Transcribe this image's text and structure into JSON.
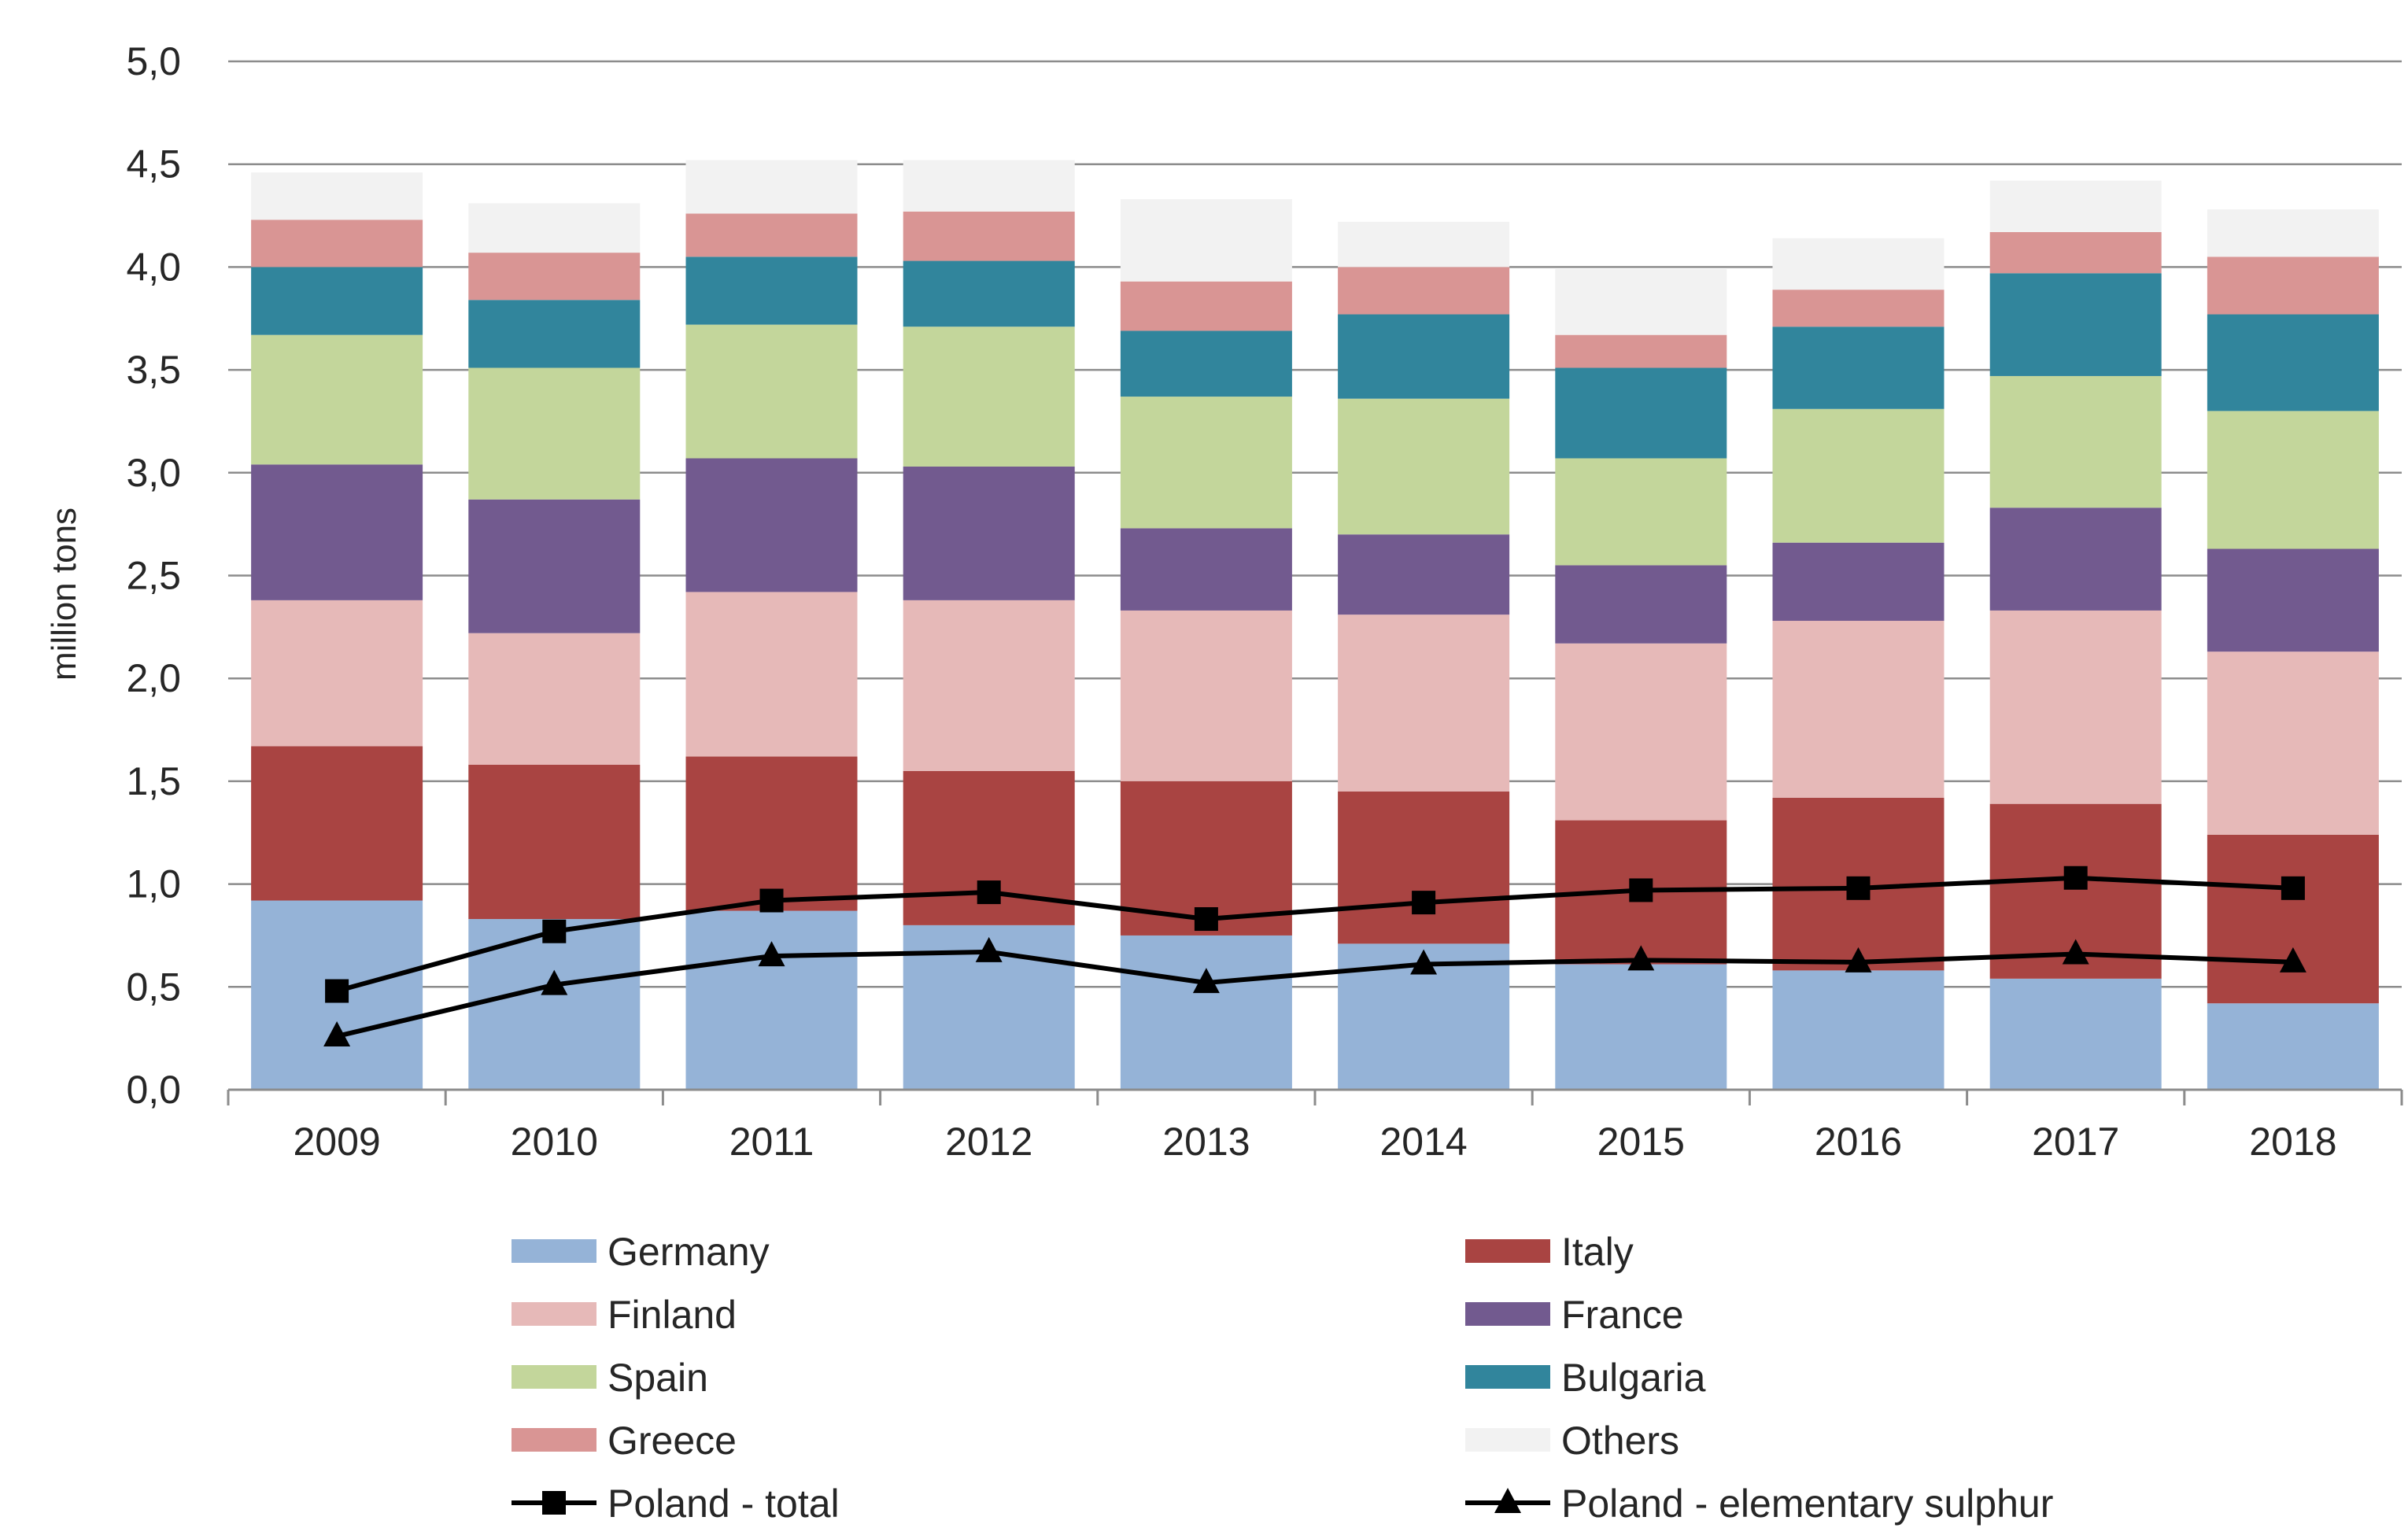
{
  "chart_data": {
    "type": "bar",
    "stacked": true,
    "title": "",
    "xlabel": "",
    "ylabel": "million tons",
    "ylim": [
      0,
      5
    ],
    "ytick_step": 0.5,
    "ytick_labels": [
      "0,0",
      "0,5",
      "1,0",
      "1,5",
      "2,0",
      "2,5",
      "3,0",
      "3,5",
      "4,0",
      "4,5",
      "5,0"
    ],
    "grid": true,
    "legend_position": "bottom",
    "categories": [
      "2009",
      "2010",
      "2011",
      "2012",
      "2013",
      "2014",
      "2015",
      "2016",
      "2017",
      "2018"
    ],
    "series": [
      {
        "name": "Germany",
        "kind": "bar",
        "color": "#95B3D7",
        "values": [
          0.92,
          0.83,
          0.87,
          0.8,
          0.75,
          0.71,
          0.61,
          0.58,
          0.54,
          0.42
        ]
      },
      {
        "name": "Italy",
        "kind": "bar",
        "color": "#A94442",
        "values": [
          0.75,
          0.75,
          0.75,
          0.75,
          0.75,
          0.74,
          0.7,
          0.84,
          0.85,
          0.82
        ]
      },
      {
        "name": "Finland",
        "kind": "bar",
        "color": "#E6B9B8",
        "values": [
          0.71,
          0.64,
          0.8,
          0.83,
          0.83,
          0.86,
          0.86,
          0.86,
          0.94,
          0.89
        ]
      },
      {
        "name": "France",
        "kind": "bar",
        "color": "#725A8F",
        "values": [
          0.66,
          0.65,
          0.65,
          0.65,
          0.4,
          0.39,
          0.38,
          0.38,
          0.5,
          0.5
        ]
      },
      {
        "name": "Spain",
        "kind": "bar",
        "color": "#C3D69B",
        "values": [
          0.63,
          0.64,
          0.65,
          0.68,
          0.64,
          0.66,
          0.52,
          0.65,
          0.64,
          0.67
        ]
      },
      {
        "name": "Bulgaria",
        "kind": "bar",
        "color": "#31859C",
        "values": [
          0.33,
          0.33,
          0.33,
          0.32,
          0.32,
          0.41,
          0.44,
          0.4,
          0.5,
          0.47
        ]
      },
      {
        "name": "Greece",
        "kind": "bar",
        "color": "#D99594",
        "values": [
          0.23,
          0.23,
          0.21,
          0.24,
          0.24,
          0.23,
          0.16,
          0.18,
          0.2,
          0.28
        ]
      },
      {
        "name": "Others",
        "kind": "bar",
        "color": "#F2F2F2",
        "values": [
          0.23,
          0.24,
          0.26,
          0.25,
          0.4,
          0.22,
          0.32,
          0.25,
          0.25,
          0.23
        ]
      },
      {
        "name": "Poland - total",
        "kind": "line",
        "marker": "square",
        "color": "#000000",
        "values": [
          0.48,
          0.77,
          0.92,
          0.96,
          0.83,
          0.91,
          0.97,
          0.98,
          1.03,
          0.98
        ]
      },
      {
        "name": "Poland - elementary sulphur",
        "kind": "line",
        "marker": "triangle",
        "color": "#000000",
        "values": [
          0.26,
          0.51,
          0.65,
          0.67,
          0.52,
          0.61,
          0.63,
          0.62,
          0.66,
          0.62
        ]
      }
    ],
    "legend": {
      "left": [
        "Germany",
        "Finland",
        "Spain",
        "Greece",
        "Poland - total"
      ],
      "right": [
        "Italy",
        "France",
        "Bulgaria",
        "Others",
        "Poland - elementary sulphur"
      ]
    }
  }
}
